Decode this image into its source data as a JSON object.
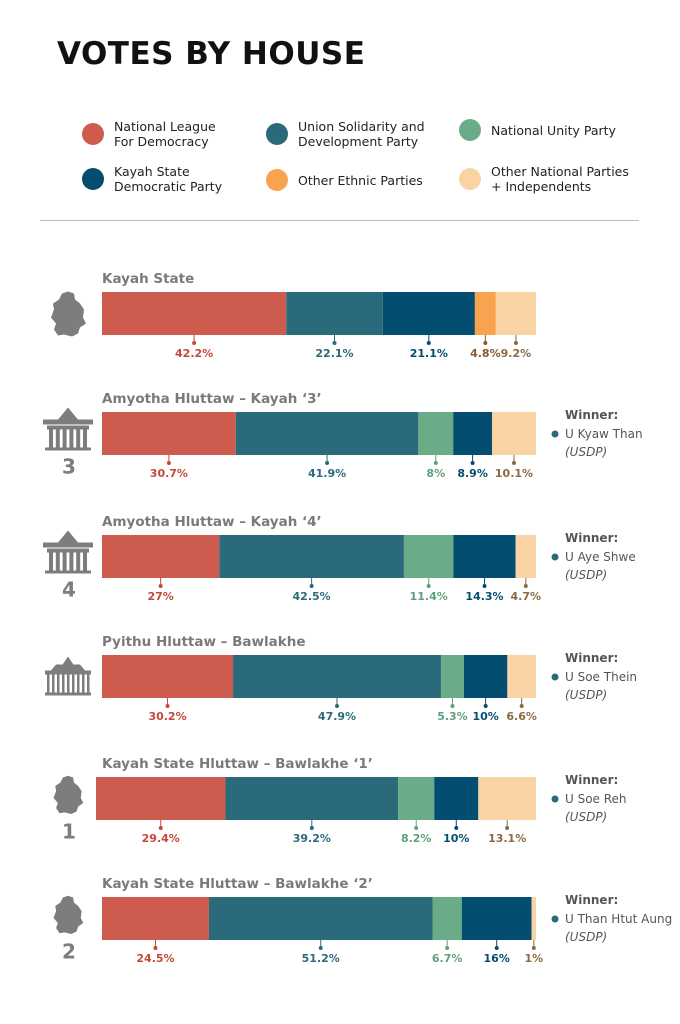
{
  "title": "VOTES BY HOUSE",
  "colors": {
    "nld": "#cd5c4e",
    "usdp": "#2b6a7a",
    "nup": "#6aac87",
    "ksdp": "#034d70",
    "ethnic": "#f9a34f",
    "other": "#f9d3a3",
    "nld_text": "#c4493b",
    "usdp_text": "#2b6a7a",
    "nup_text": "#5fa17c",
    "ksdp_text": "#034d70",
    "ethnic_text": "#8b5a2b",
    "other_text": "#8a6a44",
    "heading_text": "#7a7a7a",
    "winner_text": "#555555",
    "icon_gray": "#7d7d7d"
  },
  "legend": [
    {
      "key": "nld",
      "label": "National League\nFor Democracy"
    },
    {
      "key": "usdp",
      "label": "Union Solidarity and\nDevelopment Party"
    },
    {
      "key": "nup",
      "label": "National Unity Party"
    },
    {
      "key": "ksdp",
      "label": "Kayah State\nDemocratic Party"
    },
    {
      "key": "ethnic",
      "label": "Other Ethnic Parties"
    },
    {
      "key": "other",
      "label": "Other National Parties\n+ Independents"
    }
  ],
  "chart_data": {
    "type": "bar",
    "orientation": "horizontal",
    "stacked": true,
    "normalized": true,
    "unit": "%",
    "rows": [
      {
        "name": "Kayah State",
        "icon": "kayah-state-map-icon",
        "icon_label": "",
        "segments": [
          {
            "party": "nld",
            "value": 42.2,
            "label": "42.2%"
          },
          {
            "party": "usdp",
            "value": 22.1,
            "label": "22.1%"
          },
          {
            "party": "ksdp",
            "value": 21.1,
            "label": "21.1%"
          },
          {
            "party": "ethnic",
            "value": 4.8,
            "label": "4.8%"
          },
          {
            "party": "other",
            "value": 9.2,
            "label": "9.2%"
          }
        ],
        "winner": null
      },
      {
        "name": "Amyotha Hluttaw – Kayah ‘3’",
        "icon": "amyotha-hluttaw-building-icon",
        "icon_label": "3",
        "segments": [
          {
            "party": "nld",
            "value": 30.7,
            "label": "30.7%"
          },
          {
            "party": "usdp",
            "value": 41.9,
            "label": "41.9%"
          },
          {
            "party": "nup",
            "value": 8,
            "label": "8%"
          },
          {
            "party": "ksdp",
            "value": 8.9,
            "label": "8.9%"
          },
          {
            "party": "other",
            "value": 10.1,
            "label": "10.1%"
          }
        ],
        "winner": {
          "heading": "Winner:",
          "name": "U Kyaw Than",
          "party": "(USDP)"
        }
      },
      {
        "name": "Amyotha Hluttaw – Kayah ‘4’",
        "icon": "amyotha-hluttaw-building-icon",
        "icon_label": "4",
        "segments": [
          {
            "party": "nld",
            "value": 27,
            "label": "27%"
          },
          {
            "party": "usdp",
            "value": 42.5,
            "label": "42.5%"
          },
          {
            "party": "nup",
            "value": 11.4,
            "label": "11.4%"
          },
          {
            "party": "ksdp",
            "value": 14.3,
            "label": "14.3%"
          },
          {
            "party": "other",
            "value": 4.7,
            "label": "4.7%"
          }
        ],
        "winner": {
          "heading": "Winner:",
          "name": "U Aye Shwe",
          "party": "(USDP)"
        }
      },
      {
        "name": "Pyithu Hluttaw – Bawlakhe",
        "icon": "pyithu-hluttaw-building-icon",
        "icon_label": "",
        "segments": [
          {
            "party": "nld",
            "value": 30.2,
            "label": "30.2%"
          },
          {
            "party": "usdp",
            "value": 47.9,
            "label": "47.9%"
          },
          {
            "party": "nup",
            "value": 5.3,
            "label": "5.3%"
          },
          {
            "party": "ksdp",
            "value": 10,
            "label": "10%"
          },
          {
            "party": "other",
            "value": 6.6,
            "label": "6.6%"
          }
        ],
        "winner": {
          "heading": "Winner:",
          "name": "U Soe Thein",
          "party": "(USDP)"
        }
      },
      {
        "name": "Kayah State Hluttaw – Bawlakhe ‘1’",
        "icon": "bawlakhe-map-icon",
        "icon_label": "1",
        "segments": [
          {
            "party": "nld",
            "value": 29.4,
            "label": "29.4%"
          },
          {
            "party": "usdp",
            "value": 39.2,
            "label": "39.2%"
          },
          {
            "party": "nup",
            "value": 8.2,
            "label": "8.2%"
          },
          {
            "party": "ksdp",
            "value": 10,
            "label": "10%"
          },
          {
            "party": "other",
            "value": 13.1,
            "label": "13.1%"
          }
        ],
        "winner": {
          "heading": "Winner:",
          "name": "U Soe Reh",
          "party": "(USDP)"
        }
      },
      {
        "name": "Kayah State Hluttaw – Bawlakhe ‘2’",
        "icon": "bawlakhe-map-icon",
        "icon_label": "2",
        "segments": [
          {
            "party": "nld",
            "value": 24.5,
            "label": "24.5%"
          },
          {
            "party": "usdp",
            "value": 51.2,
            "label": "51.2%"
          },
          {
            "party": "nup",
            "value": 6.7,
            "label": "6.7%"
          },
          {
            "party": "ksdp",
            "value": 16,
            "label": "16%"
          },
          {
            "party": "other",
            "value": 1,
            "label": "1%"
          }
        ],
        "winner": {
          "heading": "Winner:",
          "name": "U Than Htut Aung",
          "party": "(USDP)"
        }
      }
    ]
  }
}
